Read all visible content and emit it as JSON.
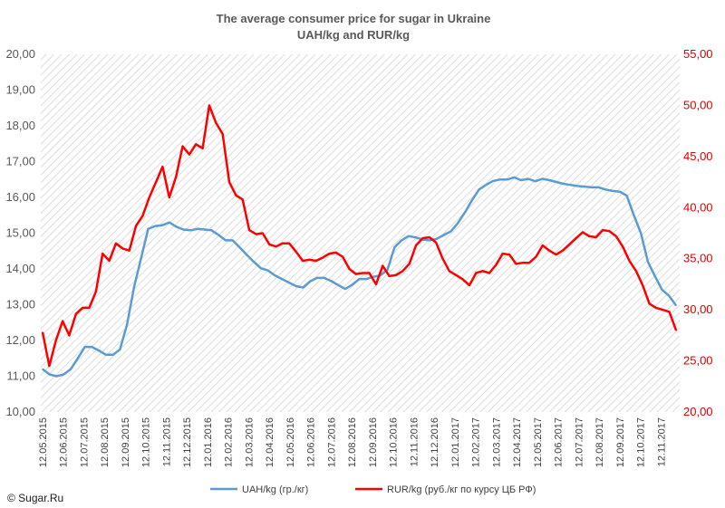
{
  "chart_data": {
    "type": "line",
    "title": "The average consumer price for sugar in Ukraine",
    "subtitle": "UAH/kg and RUR/kg",
    "copyright": "© Sugar.Ru",
    "background": "hatched",
    "grid": false,
    "legend_position": "bottom",
    "y_left": {
      "min": 10,
      "max": 20,
      "ticks": [
        "10,00",
        "11,00",
        "12,00",
        "13,00",
        "14,00",
        "15,00",
        "16,00",
        "17,00",
        "18,00",
        "19,00",
        "20,00"
      ]
    },
    "y_right": {
      "min": 20,
      "max": 55,
      "ticks": [
        "20,00",
        "25,00",
        "30,00",
        "35,00",
        "40,00",
        "45,00",
        "50,00",
        "55,00"
      ]
    },
    "x_labels": [
      "12.05.2015",
      "12.06.2015",
      "12.07.2015",
      "12.08.2015",
      "12.09.2015",
      "12.10.2015",
      "12.11.2015",
      "12.12.2015",
      "12.01.2016",
      "12.02.2016",
      "12.03.2016",
      "12.04.2016",
      "12.05.2016",
      "12.06.2016",
      "12.07.2016",
      "12.08.2016",
      "12.09.2016",
      "12.10.2016",
      "12.11.2016",
      "12.12.2016",
      "12.01.2017",
      "12.02.2017",
      "12.03.2017",
      "12.04.2017",
      "12.05.2017",
      "12.06.2017",
      "12.07.2017",
      "12.08.2017",
      "12.09.2017",
      "12.10.2017",
      "12.11.2017"
    ],
    "series": [
      {
        "name": "UAH/kg  (гр./кг)",
        "axis": "left",
        "color": "#5b9bd5",
        "values": [
          11.2,
          11.05,
          11.0,
          11.05,
          11.2,
          11.5,
          11.82,
          11.82,
          11.72,
          11.6,
          11.6,
          11.75,
          12.45,
          13.5,
          14.3,
          15.12,
          15.2,
          15.22,
          15.3,
          15.18,
          15.1,
          15.08,
          15.12,
          15.1,
          15.08,
          14.95,
          14.8,
          14.8,
          14.6,
          14.4,
          14.2,
          14.02,
          13.96,
          13.82,
          13.72,
          13.62,
          13.52,
          13.48,
          13.65,
          13.75,
          13.75,
          13.66,
          13.55,
          13.44,
          13.56,
          13.72,
          13.72,
          13.78,
          13.82,
          13.98,
          14.6,
          14.8,
          14.92,
          14.88,
          14.82,
          14.8,
          14.84,
          14.95,
          15.05,
          15.28,
          15.58,
          15.92,
          16.22,
          16.35,
          16.46,
          16.5,
          16.5,
          16.56,
          16.48,
          16.52,
          16.45,
          16.52,
          16.48,
          16.43,
          16.38,
          16.35,
          16.32,
          16.3,
          16.28,
          16.28,
          16.22,
          16.18,
          16.16,
          16.05,
          15.5,
          15.0,
          14.2,
          13.8,
          13.42,
          13.25,
          12.98
        ]
      },
      {
        "name": "RUR/kg (руб./кг по курсу ЦБ РФ)",
        "axis": "right",
        "color": "#ff0000",
        "values": [
          27.8,
          24.5,
          27.0,
          28.9,
          27.5,
          29.6,
          30.2,
          30.2,
          31.8,
          35.5,
          34.8,
          36.5,
          36.0,
          35.8,
          38.2,
          39.2,
          41.0,
          42.5,
          44.0,
          41.0,
          43.0,
          46.0,
          45.2,
          46.2,
          45.8,
          50.0,
          48.3,
          47.2,
          42.5,
          41.2,
          40.8,
          37.8,
          37.4,
          37.5,
          36.4,
          36.2,
          36.5,
          36.5,
          35.7,
          34.8,
          34.9,
          34.8,
          35.1,
          35.5,
          35.6,
          35.2,
          34.0,
          33.5,
          33.6,
          33.6,
          32.5,
          34.3,
          33.3,
          33.4,
          33.8,
          34.5,
          36.3,
          37.0,
          37.1,
          36.6,
          35.0,
          33.8,
          33.4,
          33.0,
          32.4,
          33.6,
          33.8,
          33.6,
          34.4,
          35.5,
          35.4,
          34.5,
          34.6,
          34.6,
          35.2,
          36.3,
          35.8,
          35.4,
          35.8,
          36.4,
          37.0,
          37.6,
          37.2,
          37.1,
          37.8,
          37.7,
          37.2,
          36.2,
          34.8,
          33.8,
          32.4,
          30.6,
          30.2,
          30.0,
          29.8,
          28.0
        ]
      }
    ]
  }
}
